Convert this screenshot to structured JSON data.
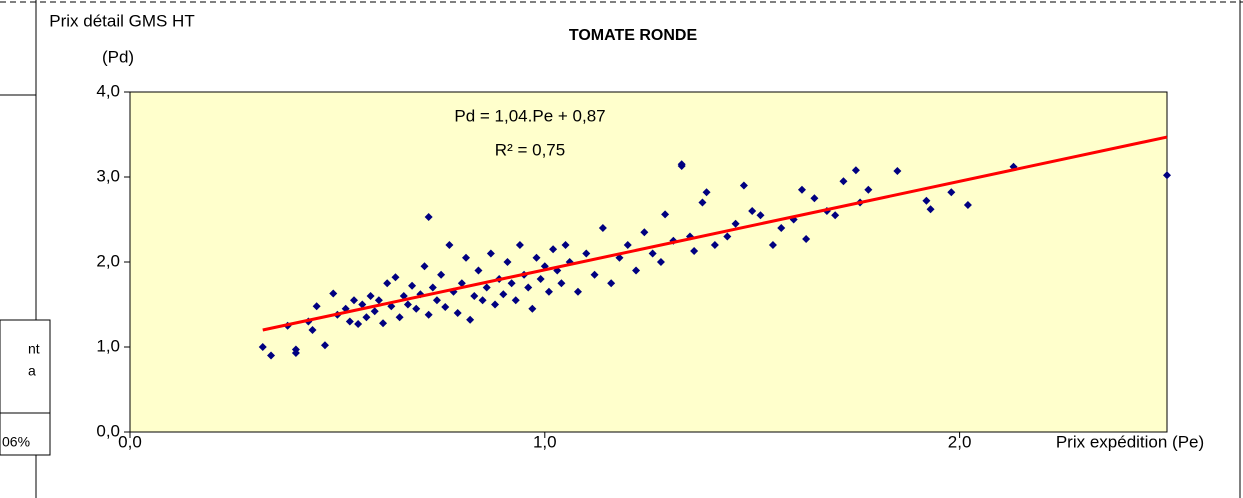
{
  "chart_data": {
    "type": "scatter",
    "title": "TOMATE RONDE",
    "y_label": [
      "Prix détail GMS HT",
      "(Pd)"
    ],
    "x_label": "Prix expédition (Pe)",
    "annotations": [
      "Pd = 1,04.Pe + 0,87",
      "R² = 0,75"
    ],
    "x": [
      0.32,
      0.34,
      0.38,
      0.4,
      0.4,
      0.43,
      0.44,
      0.45,
      0.47,
      0.49,
      0.5,
      0.52,
      0.53,
      0.54,
      0.55,
      0.56,
      0.57,
      0.58,
      0.59,
      0.6,
      0.61,
      0.62,
      0.63,
      0.64,
      0.65,
      0.66,
      0.67,
      0.68,
      0.69,
      0.7,
      0.71,
      0.72,
      0.72,
      0.73,
      0.74,
      0.75,
      0.76,
      0.77,
      0.78,
      0.79,
      0.8,
      0.81,
      0.82,
      0.83,
      0.84,
      0.85,
      0.86,
      0.87,
      0.88,
      0.89,
      0.9,
      0.91,
      0.92,
      0.93,
      0.94,
      0.95,
      0.96,
      0.97,
      0.98,
      0.99,
      1.0,
      1.01,
      1.02,
      1.03,
      1.04,
      1.05,
      1.06,
      1.08,
      1.1,
      1.12,
      1.14,
      1.16,
      1.18,
      1.2,
      1.22,
      1.24,
      1.26,
      1.28,
      1.29,
      1.31,
      1.33,
      1.33,
      1.35,
      1.36,
      1.38,
      1.39,
      1.41,
      1.44,
      1.46,
      1.48,
      1.5,
      1.52,
      1.55,
      1.57,
      1.6,
      1.62,
      1.63,
      1.65,
      1.68,
      1.7,
      1.72,
      1.75,
      1.76,
      1.78,
      1.85,
      1.92,
      1.93,
      1.98,
      2.02,
      2.13,
      2.5
    ],
    "values": [
      1.0,
      0.9,
      1.25,
      0.97,
      0.93,
      1.3,
      1.2,
      1.48,
      1.02,
      1.63,
      1.38,
      1.45,
      1.3,
      1.55,
      1.27,
      1.5,
      1.35,
      1.6,
      1.42,
      1.55,
      1.28,
      1.75,
      1.48,
      1.82,
      1.35,
      1.6,
      1.5,
      1.72,
      1.45,
      1.62,
      1.95,
      2.53,
      1.38,
      1.7,
      1.55,
      1.85,
      1.47,
      2.2,
      1.65,
      1.4,
      1.75,
      2.05,
      1.32,
      1.6,
      1.9,
      1.55,
      1.7,
      2.1,
      1.5,
      1.8,
      1.62,
      2.0,
      1.75,
      1.55,
      2.2,
      1.85,
      1.7,
      1.45,
      2.05,
      1.8,
      1.95,
      1.65,
      2.15,
      1.9,
      1.75,
      2.2,
      2.0,
      1.65,
      2.1,
      1.85,
      2.4,
      1.75,
      2.05,
      2.2,
      1.9,
      2.35,
      2.1,
      2.0,
      2.56,
      2.25,
      3.15,
      3.13,
      2.3,
      2.13,
      2.7,
      2.82,
      2.2,
      2.3,
      2.45,
      2.9,
      2.6,
      2.55,
      2.2,
      2.4,
      2.5,
      2.85,
      2.27,
      2.75,
      2.6,
      2.55,
      2.95,
      3.08,
      2.7,
      2.85,
      3.07,
      2.72,
      2.62,
      2.82,
      2.67,
      3.12,
      3.02
    ],
    "color": "#000080",
    "trendline": {
      "x": [
        0.32,
        2.5
      ],
      "values": [
        1.2,
        3.47
      ],
      "color": "#ff0000"
    },
    "xlim": [
      0,
      2.5
    ],
    "xticks": [
      {
        "value": 0,
        "label": "0,0"
      },
      {
        "value": 1,
        "label": "1,0"
      },
      {
        "value": 2,
        "label": "2,0"
      }
    ],
    "ylim": [
      0,
      4
    ],
    "yticks": [
      {
        "value": 0,
        "label": "0,0"
      },
      {
        "value": 1,
        "label": "1,0"
      },
      {
        "value": 2,
        "label": "2,0"
      },
      {
        "value": 3,
        "label": "3,0"
      },
      {
        "value": 4,
        "label": "4,0"
      }
    ],
    "background": "#ffffcc"
  },
  "side_table": {
    "cells": [
      "nt",
      "a",
      "06%"
    ]
  }
}
